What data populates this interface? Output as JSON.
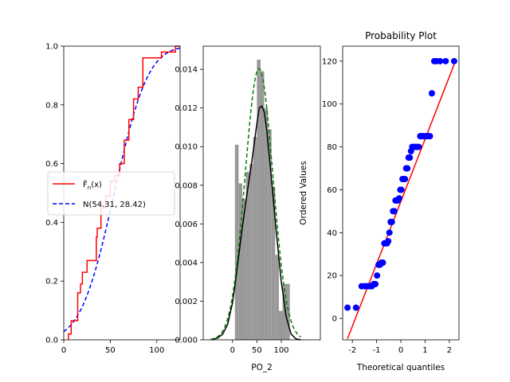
{
  "chart_data": [
    {
      "type": "line",
      "title": "",
      "xlabel": "",
      "ylabel": "",
      "xlim": [
        0,
        125
      ],
      "ylim": [
        0,
        1
      ],
      "xticks": [
        0,
        50,
        100
      ],
      "yticks": [
        0.0,
        0.2,
        0.4,
        0.6,
        0.8,
        1.0
      ],
      "legend": {
        "position": "center-left",
        "entries": [
          {
            "label": "F̂n(x)",
            "label_display": "F̂",
            "label_sub": "n",
            "label_tail": "(x)",
            "color": "#ff0000",
            "style": "solid"
          },
          {
            "label": "N(54.31, 28.42)",
            "color": "#0000ff",
            "style": "dashed"
          }
        ]
      },
      "series": [
        {
          "name": "F̂n(x)",
          "kind": "step",
          "color": "#ff0000",
          "x": [
            5,
            8,
            15,
            18,
            20,
            25,
            26,
            35,
            36,
            40,
            45,
            50,
            55,
            60,
            65,
            70,
            75,
            80,
            85,
            105,
            120
          ],
          "y": [
            0.02,
            0.065,
            0.16,
            0.19,
            0.23,
            0.27,
            0.27,
            0.35,
            0.38,
            0.45,
            0.49,
            0.54,
            0.56,
            0.6,
            0.68,
            0.75,
            0.82,
            0.86,
            0.96,
            0.98,
            1.0
          ]
        },
        {
          "name": "N(54.31, 28.42)",
          "kind": "normal_cdf",
          "color": "#0000ff",
          "mean": 54.31,
          "sd": 28.42
        }
      ]
    },
    {
      "type": "bar",
      "title": "",
      "xlabel": "PO_2",
      "ylabel": "",
      "xlim": [
        -60,
        180
      ],
      "ylim": [
        0,
        0.0152
      ],
      "xticks": [
        0,
        50,
        100
      ],
      "yticks": [
        0.0,
        0.002,
        0.004,
        0.006,
        0.008,
        0.01,
        0.012,
        0.014
      ],
      "bar_color": "#999999",
      "bins": [
        {
          "start": 5.0,
          "end": 12.5,
          "value": 0.0101
        },
        {
          "start": 12.5,
          "end": 20.0,
          "value": 0.0081
        },
        {
          "start": 20.0,
          "end": 27.5,
          "value": 0.0073
        },
        {
          "start": 27.5,
          "end": 35.0,
          "value": 0.0087
        },
        {
          "start": 35.0,
          "end": 42.5,
          "value": 0.0091
        },
        {
          "start": 42.5,
          "end": 50.0,
          "value": 0.0105
        },
        {
          "start": 50.0,
          "end": 57.5,
          "value": 0.0145
        },
        {
          "start": 57.5,
          "end": 65.0,
          "value": 0.0139
        },
        {
          "start": 65.0,
          "end": 72.5,
          "value": 0.012
        },
        {
          "start": 72.5,
          "end": 80.0,
          "value": 0.0109
        },
        {
          "start": 80.0,
          "end": 87.5,
          "value": 0.0079
        },
        {
          "start": 87.5,
          "end": 95.0,
          "value": 0.0044
        },
        {
          "start": 95.0,
          "end": 102.5,
          "value": 0.0015
        },
        {
          "start": 102.5,
          "end": 110.0,
          "value": 0.0029
        },
        {
          "start": 110.0,
          "end": 117.5,
          "value": 0.0029
        }
      ],
      "series": [
        {
          "name": "kde",
          "color": "#000000",
          "style": "solid",
          "x": [
            -42,
            -30,
            -20,
            -10,
            0,
            5,
            10,
            20,
            30,
            40,
            50,
            55,
            60,
            65,
            70,
            80,
            90,
            100,
            110,
            120,
            130,
            140
          ],
          "y": [
            0.0,
            0.0001,
            0.0003,
            0.0008,
            0.0019,
            0.0028,
            0.0038,
            0.0058,
            0.0076,
            0.0093,
            0.0112,
            0.012,
            0.0121,
            0.0118,
            0.0109,
            0.0083,
            0.0055,
            0.003,
            0.0012,
            0.0003,
            5e-05,
            0.0
          ]
        },
        {
          "name": "normal",
          "color": "#008000",
          "style": "dashed",
          "kind": "normal_pdf",
          "mean": 54.31,
          "sd": 28.42
        }
      ]
    },
    {
      "type": "scatter",
      "title": "Probability Plot",
      "xlabel": "Theoretical quantiles",
      "ylabel": "Ordered Values",
      "xlim": [
        -2.4,
        2.4
      ],
      "ylim": [
        -10,
        127
      ],
      "xticks": [
        -2,
        -1,
        0,
        1,
        2
      ],
      "yticks": [
        0,
        20,
        40,
        60,
        80,
        100,
        120
      ],
      "series": [
        {
          "name": "points",
          "color": "#0000ff",
          "x": [
            -2.2,
            -1.85,
            -1.62,
            -1.48,
            -1.38,
            -1.28,
            -1.2,
            -1.12,
            -1.05,
            -0.98,
            -0.92,
            -0.86,
            -0.8,
            -0.74,
            -0.68,
            -0.63,
            -0.57,
            -0.52,
            -0.47,
            -0.42,
            -0.37,
            -0.32,
            -0.27,
            -0.22,
            -0.17,
            -0.12,
            -0.07,
            -0.02,
            0.02,
            0.07,
            0.12,
            0.17,
            0.22,
            0.27,
            0.32,
            0.37,
            0.42,
            0.47,
            0.52,
            0.57,
            0.63,
            0.68,
            0.74,
            0.8,
            0.86,
            0.92,
            0.98,
            1.05,
            1.12,
            1.2,
            1.28,
            1.38,
            1.48,
            1.62,
            1.85,
            2.2
          ],
          "y": [
            5,
            5,
            15,
            15,
            15,
            15,
            15,
            16,
            16,
            20,
            25,
            25,
            26,
            26,
            35,
            35,
            35,
            36,
            40,
            45,
            45,
            50,
            50,
            55,
            55,
            55,
            56,
            60,
            60,
            65,
            65,
            65,
            70,
            70,
            75,
            75,
            78,
            80,
            80,
            80,
            80,
            80,
            80,
            85,
            85,
            85,
            85,
            85,
            85,
            85,
            105,
            120,
            120,
            120,
            120,
            120
          ]
        },
        {
          "name": "fit",
          "kind": "line",
          "color": "#ff0000",
          "x": [
            -2.2,
            2.2
          ],
          "y": [
            -9.5,
            118.5
          ]
        }
      ]
    }
  ]
}
